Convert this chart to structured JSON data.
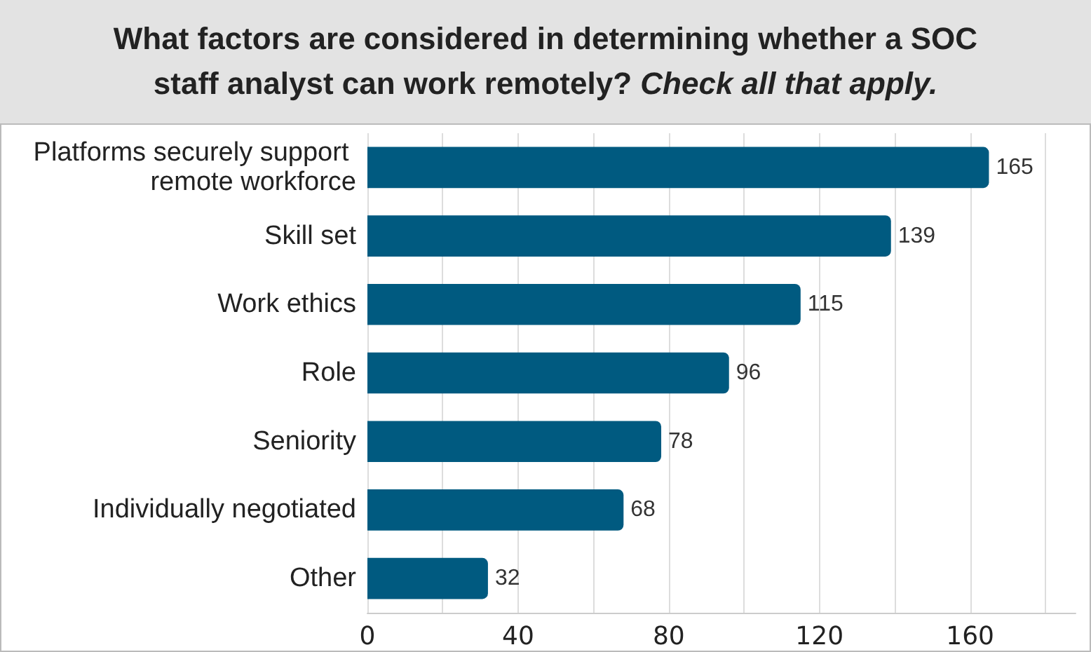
{
  "chart_data": {
    "type": "bar",
    "orientation": "horizontal",
    "title": "What factors are considered in determining whether a SOC staff analyst can work remotely?",
    "subtitle": "Check all that apply.",
    "categories": [
      "Platforms securely support remote workforce",
      "Skill set",
      "Work ethics",
      "Role",
      "Seniority",
      "Individually negotiated",
      "Other"
    ],
    "values": [
      165,
      139,
      115,
      96,
      78,
      68,
      32
    ],
    "color": "#005a80",
    "data_labels": true,
    "xlim": [
      0,
      188
    ],
    "xticks": [
      0,
      {
        "value": 20,
        "label": null
      },
      40,
      {
        "value": 60,
        "label": null
      },
      80,
      {
        "value": 100,
        "label": null
      },
      120,
      {
        "value": 140,
        "label": null
      },
      160,
      {
        "value": 180,
        "label": null
      }
    ],
    "grid": "x"
  }
}
